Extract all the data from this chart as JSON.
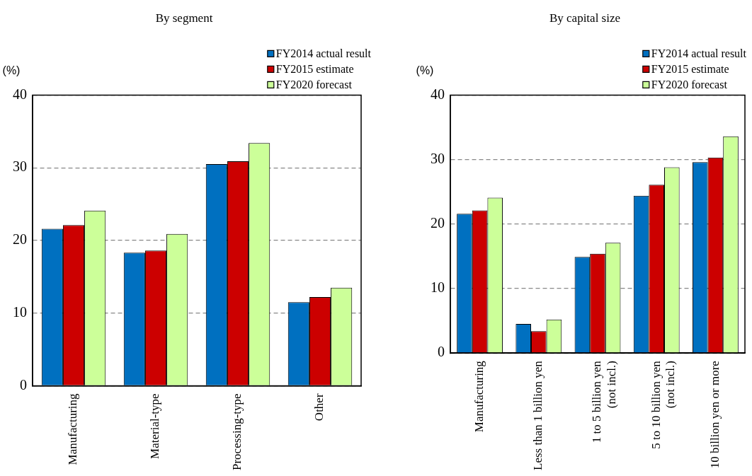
{
  "chart_data": [
    {
      "type": "bar",
      "title": "By segment",
      "ylabel": "(%)",
      "categories": [
        "Manufacturing",
        "Material-type",
        "Processing-type",
        "Other"
      ],
      "series": [
        {
          "name": "FY2014 actual result",
          "color": "#0070c0",
          "values": [
            21.6,
            18.3,
            30.5,
            11.5
          ]
        },
        {
          "name": "FY2015 estimate",
          "color": "#cc0000",
          "values": [
            22.1,
            18.6,
            30.9,
            12.2
          ]
        },
        {
          "name": "FY2020 forecast",
          "color": "#ccff99",
          "values": [
            24.1,
            20.9,
            33.4,
            13.5
          ]
        }
      ],
      "ylim": [
        0,
        40
      ],
      "yticks": [
        0,
        10,
        20,
        30,
        40
      ],
      "grid": "y",
      "legend": "top right"
    },
    {
      "type": "bar",
      "title": "By capital size",
      "ylabel": "(%)",
      "categories": [
        "Manufacturing",
        "Less than 1 billion yen",
        "1 to 5 billion yen\n(not incl.)",
        "5 to 10 billion yen\n(not incl.)",
        "10 billion yen or more"
      ],
      "series": [
        {
          "name": "FY2014 actual result",
          "color": "#0070c0",
          "values": [
            21.6,
            4.5,
            14.9,
            24.4,
            29.6
          ]
        },
        {
          "name": "FY2015 estimate",
          "color": "#cc0000",
          "values": [
            22.1,
            3.4,
            15.4,
            26.1,
            30.3
          ]
        },
        {
          "name": "FY2020 forecast",
          "color": "#ccff99",
          "values": [
            24.1,
            5.2,
            17.1,
            28.8,
            33.6
          ]
        }
      ],
      "ylim": [
        0,
        40
      ],
      "yticks": [
        0,
        10,
        20,
        30,
        40
      ],
      "grid": "y",
      "legend": "top right"
    }
  ]
}
